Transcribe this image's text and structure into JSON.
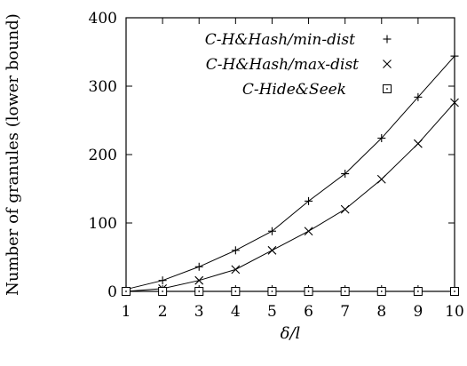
{
  "chart_data": {
    "type": "line",
    "title": "",
    "xlabel": "δ/l",
    "ylabel": "Number of granules (lower bound)",
    "xlim": [
      1,
      10
    ],
    "ylim": [
      0,
      400
    ],
    "xticks": [
      1,
      2,
      3,
      4,
      5,
      6,
      7,
      8,
      9,
      10
    ],
    "yticks": [
      0,
      100,
      200,
      300,
      400
    ],
    "x": [
      1,
      2,
      3,
      4,
      5,
      6,
      7,
      8,
      9,
      10
    ],
    "grid": false,
    "legend_position": "top-right",
    "series": [
      {
        "name": "C-H&Hash/min-dist",
        "marker": "plus",
        "values": [
          3,
          16,
          36,
          60,
          88,
          132,
          172,
          224,
          284,
          344
        ]
      },
      {
        "name": "C-H&Hash/max-dist",
        "marker": "cross",
        "values": [
          0,
          4,
          16,
          32,
          60,
          88,
          120,
          164,
          216,
          276
        ]
      },
      {
        "name": "C-Hide&Seek",
        "marker": "square",
        "values": [
          0,
          0,
          0,
          0,
          0,
          0,
          0,
          0,
          0,
          0
        ]
      }
    ]
  }
}
